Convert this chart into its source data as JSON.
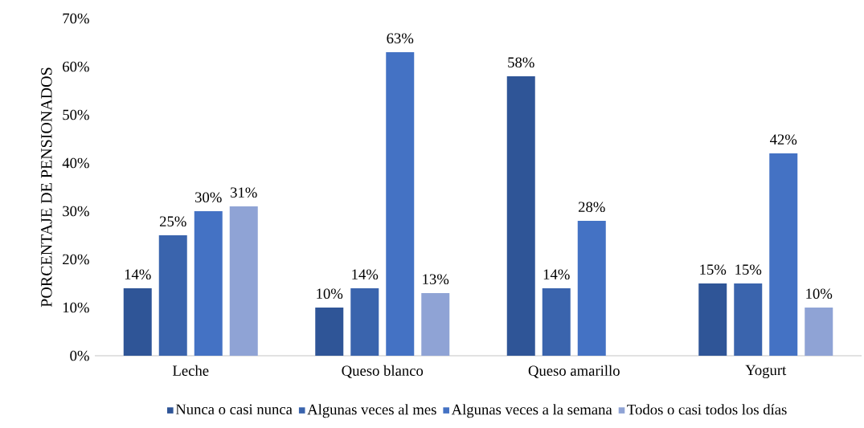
{
  "chart_data": {
    "type": "bar",
    "ylabel": "PORCENTAJE DE PENSIONADOS",
    "categories": [
      "Leche",
      "Queso blanco",
      "Queso amarillo",
      "Yogurt"
    ],
    "series": [
      {
        "name": "Nunca o casi nunca",
        "color": "#2f5597",
        "values": [
          14,
          10,
          58,
          15
        ],
        "value_labels": [
          "14%",
          "10%",
          "58%",
          "15%"
        ]
      },
      {
        "name": "Algunas veces al mes",
        "color": "#3a64ad",
        "values": [
          25,
          14,
          14,
          15
        ],
        "value_labels": [
          "25%",
          "14%",
          "14%",
          "15%"
        ]
      },
      {
        "name": "Algunas veces a la semana",
        "color": "#4472c4",
        "values": [
          30,
          63,
          28,
          42
        ],
        "value_labels": [
          "30%",
          "63%",
          "28%",
          "42%"
        ]
      },
      {
        "name": "Todos o casi todos los días",
        "color": "#8fa3d5",
        "values": [
          31,
          13,
          null,
          10
        ],
        "value_labels": [
          "31%",
          "13%",
          null,
          "10%"
        ]
      }
    ],
    "ylim": [
      0,
      70
    ],
    "yticks": [
      {
        "value": 0,
        "label": "0%"
      },
      {
        "value": 10,
        "label": "10%"
      },
      {
        "value": 20,
        "label": "20%"
      },
      {
        "value": 30,
        "label": "30%"
      },
      {
        "value": 40,
        "label": "40%"
      },
      {
        "value": 50,
        "label": "50%"
      },
      {
        "value": 60,
        "label": "60%"
      },
      {
        "value": 70,
        "label": "70%"
      }
    ],
    "grid": false,
    "legend": "bottom"
  }
}
